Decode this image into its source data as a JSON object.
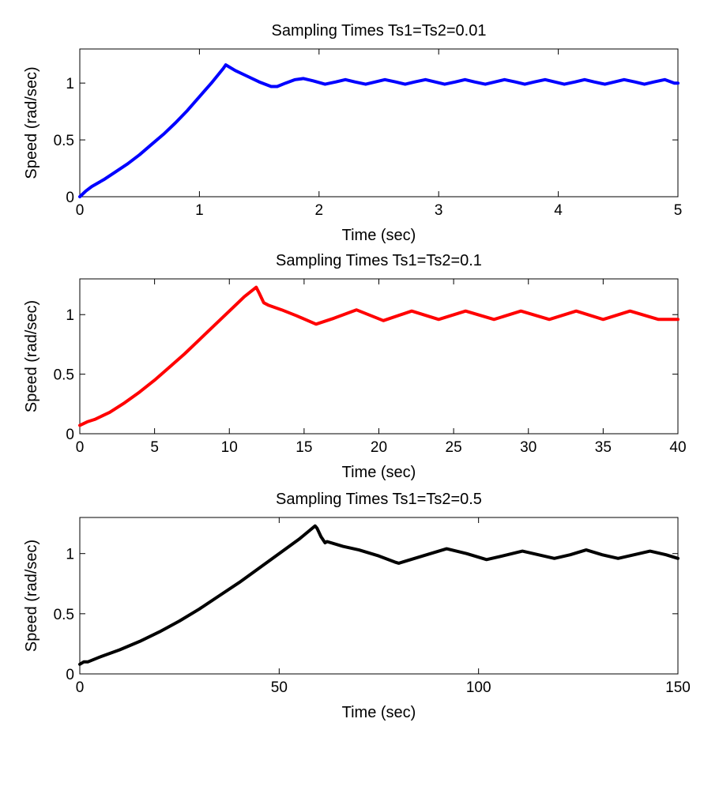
{
  "chart_data": [
    {
      "type": "line",
      "title": "Sampling Times Ts1=Ts2=0.01",
      "xlabel": "Time (sec)",
      "ylabel": "Speed (rad/sec)",
      "xlim": [
        0,
        5
      ],
      "ylim": [
        0,
        1.3
      ],
      "xticks": [
        "0",
        "1",
        "2",
        "3",
        "4",
        "5"
      ],
      "yticks": [
        "0",
        "0.5",
        "1"
      ],
      "grid": false,
      "series": [
        {
          "color": "#0000ff",
          "x": [
            0,
            0.05,
            0.1,
            0.2,
            0.3,
            0.4,
            0.5,
            0.6,
            0.7,
            0.8,
            0.9,
            1.0,
            1.1,
            1.2,
            1.22,
            1.3,
            1.4,
            1.5,
            1.6,
            1.65,
            1.72,
            1.8,
            1.87,
            1.95,
            2.05,
            2.14,
            2.22,
            2.3,
            2.39,
            2.47,
            2.55,
            2.64,
            2.72,
            2.8,
            2.89,
            2.97,
            3.05,
            3.14,
            3.22,
            3.3,
            3.39,
            3.47,
            3.55,
            3.64,
            3.72,
            3.8,
            3.89,
            3.97,
            4.05,
            4.14,
            4.22,
            4.3,
            4.39,
            4.47,
            4.55,
            4.64,
            4.72,
            4.8,
            4.89,
            4.97,
            5.0
          ],
          "y": [
            0,
            0.05,
            0.09,
            0.15,
            0.22,
            0.29,
            0.37,
            0.46,
            0.55,
            0.65,
            0.76,
            0.88,
            1.0,
            1.13,
            1.16,
            1.11,
            1.06,
            1.01,
            0.97,
            0.97,
            1.0,
            1.03,
            1.04,
            1.02,
            0.99,
            1.01,
            1.03,
            1.01,
            0.99,
            1.01,
            1.03,
            1.01,
            0.99,
            1.01,
            1.03,
            1.01,
            0.99,
            1.01,
            1.03,
            1.01,
            0.99,
            1.01,
            1.03,
            1.01,
            0.99,
            1.01,
            1.03,
            1.01,
            0.99,
            1.01,
            1.03,
            1.01,
            0.99,
            1.01,
            1.03,
            1.01,
            0.99,
            1.01,
            1.03,
            1.0,
            1.0
          ]
        }
      ]
    },
    {
      "type": "line",
      "title": "Sampling Times Ts1=Ts2=0.1",
      "xlabel": "Time (sec)",
      "ylabel": "Speed (rad/sec)",
      "xlim": [
        0,
        40
      ],
      "ylim": [
        0,
        1.3
      ],
      "xticks": [
        "0",
        "5",
        "10",
        "15",
        "20",
        "25",
        "30",
        "35",
        "40"
      ],
      "yticks": [
        "0",
        "0.5",
        "1"
      ],
      "grid": false,
      "series": [
        {
          "color": "#ff0000",
          "x": [
            0,
            0.5,
            1,
            2,
            3,
            4,
            5,
            6,
            7,
            8,
            9,
            10,
            11,
            11.8,
            12.0,
            12.3,
            12.6,
            13.5,
            14.5,
            15.8,
            17,
            18.5,
            20.3,
            22.2,
            24,
            25.8,
            27.7,
            29.5,
            31.4,
            33.2,
            35.0,
            36.8,
            38.7,
            40
          ],
          "y": [
            0.07,
            0.1,
            0.12,
            0.18,
            0.26,
            0.35,
            0.45,
            0.56,
            0.67,
            0.79,
            0.91,
            1.03,
            1.15,
            1.23,
            1.18,
            1.1,
            1.08,
            1.04,
            0.99,
            0.92,
            0.97,
            1.04,
            0.95,
            1.03,
            0.96,
            1.03,
            0.96,
            1.03,
            0.96,
            1.03,
            0.96,
            1.03,
            0.96,
            0.96
          ]
        }
      ]
    },
    {
      "type": "line",
      "title": "Sampling Times Ts1=Ts2=0.5",
      "xlabel": "Time (sec)",
      "ylabel": "Speed (rad/sec)",
      "xlim": [
        0,
        150
      ],
      "ylim": [
        0,
        1.3
      ],
      "xticks": [
        "0",
        "50",
        "100",
        "150"
      ],
      "yticks": [
        "0",
        "0.5",
        "1"
      ],
      "grid": false,
      "series": [
        {
          "color": "#000000",
          "x": [
            0,
            1,
            2,
            5,
            10,
            15,
            20,
            25,
            30,
            35,
            40,
            45,
            50,
            55,
            59,
            59.5,
            60.5,
            61.5,
            62,
            66,
            70,
            75,
            79,
            80,
            86,
            92,
            97,
            102,
            106,
            111,
            115,
            119,
            123,
            127,
            131,
            135,
            139,
            143,
            147,
            150
          ],
          "y": [
            0.08,
            0.1,
            0.1,
            0.14,
            0.2,
            0.27,
            0.35,
            0.44,
            0.54,
            0.65,
            0.76,
            0.88,
            1.0,
            1.12,
            1.23,
            1.21,
            1.14,
            1.09,
            1.1,
            1.06,
            1.03,
            0.98,
            0.93,
            0.92,
            0.98,
            1.04,
            1.0,
            0.95,
            0.98,
            1.02,
            0.99,
            0.96,
            0.99,
            1.03,
            0.99,
            0.96,
            0.99,
            1.02,
            0.99,
            0.96
          ]
        }
      ]
    }
  ]
}
